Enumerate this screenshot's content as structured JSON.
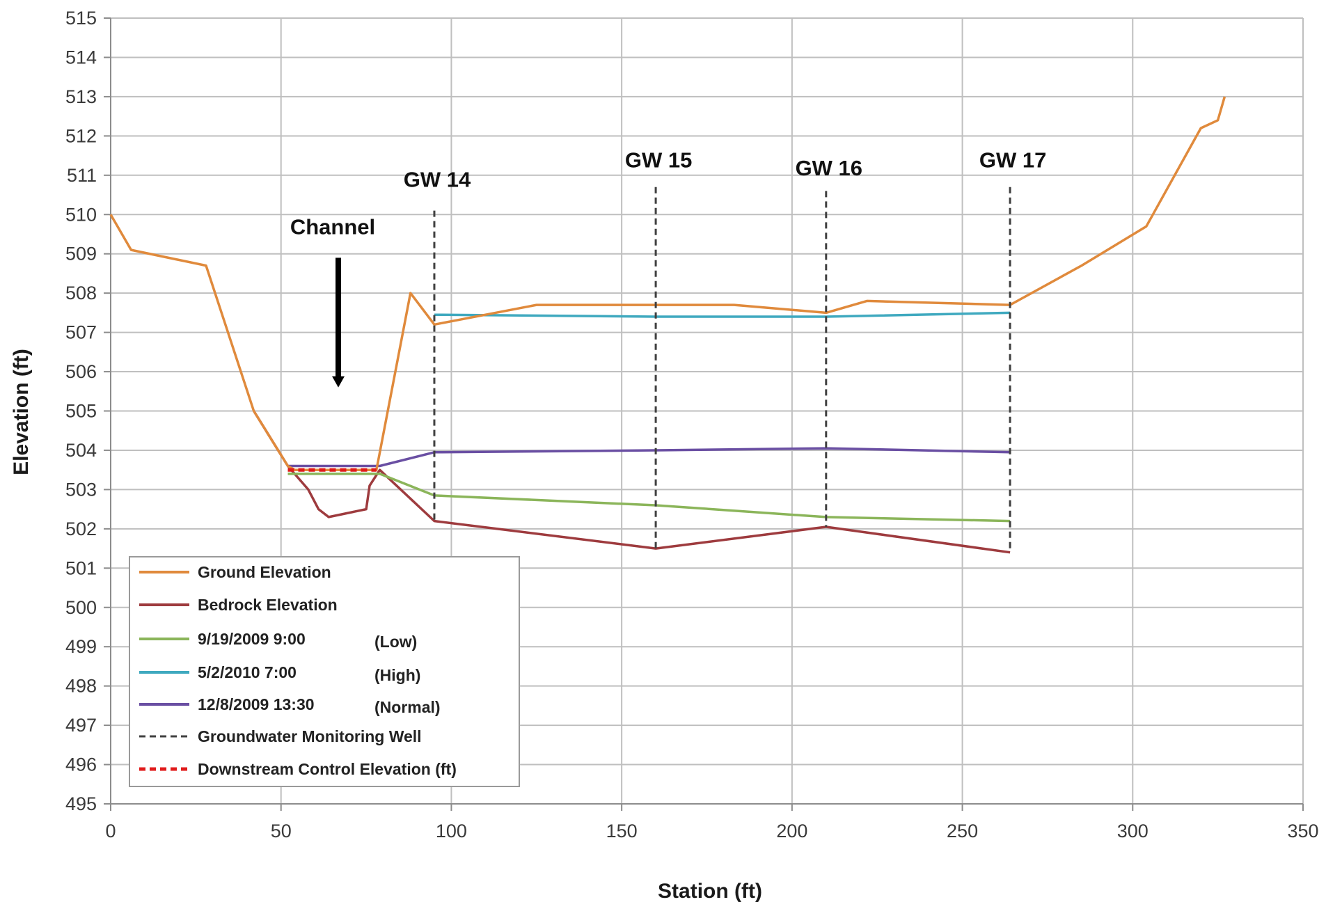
{
  "chart_data": {
    "type": "line",
    "xlabel": "Station (ft)",
    "ylabel": "Elevation (ft)",
    "xlim": [
      0,
      350
    ],
    "ylim": [
      495,
      515
    ],
    "xticks": [
      0,
      50,
      100,
      150,
      200,
      250,
      300,
      350
    ],
    "yticks": [
      495,
      496,
      497,
      498,
      499,
      500,
      501,
      502,
      503,
      504,
      505,
      506,
      507,
      508,
      509,
      510,
      511,
      512,
      513,
      514,
      515
    ],
    "grid": true,
    "legend_position": "bottom-left",
    "series": [
      {
        "name": "Ground Elevation",
        "color": "#E08A3C",
        "style": "solid",
        "points": [
          [
            0,
            510
          ],
          [
            6,
            509.1
          ],
          [
            28,
            508.7
          ],
          [
            42,
            505
          ],
          [
            52,
            503.6
          ],
          [
            54,
            503.5
          ],
          [
            78,
            503.5
          ],
          [
            88,
            508
          ],
          [
            95,
            507.2
          ],
          [
            101,
            507.3
          ],
          [
            125,
            507.7
          ],
          [
            183,
            507.7
          ],
          [
            210,
            507.5
          ],
          [
            222,
            507.8
          ],
          [
            264,
            507.7
          ],
          [
            285,
            508.7
          ],
          [
            304,
            509.7
          ],
          [
            320,
            512.2
          ],
          [
            325,
            512.4
          ],
          [
            327,
            513
          ]
        ]
      },
      {
        "name": "Bedrock Elevation",
        "color": "#9E3B3E",
        "style": "solid",
        "points": [
          [
            42,
            505
          ],
          [
            52,
            503.6
          ],
          [
            58,
            503
          ],
          [
            61,
            502.5
          ],
          [
            64,
            502.3
          ],
          [
            75,
            502.5
          ],
          [
            76,
            503.1
          ],
          [
            79,
            503.5
          ],
          [
            95,
            502.2
          ],
          [
            160,
            501.5
          ],
          [
            210,
            502.05
          ],
          [
            264,
            501.4
          ]
        ]
      },
      {
        "name": "9/19/2009 9:00",
        "qualifier": "(Low)",
        "color": "#8BB55A",
        "style": "solid",
        "points": [
          [
            52,
            503.4
          ],
          [
            79,
            503.4
          ],
          [
            95,
            502.85
          ],
          [
            160,
            502.6
          ],
          [
            210,
            502.3
          ],
          [
            264,
            502.2
          ]
        ]
      },
      {
        "name": "5/2/2010 7:00",
        "qualifier": "(High)",
        "color": "#3FA9BF",
        "style": "solid",
        "points": [
          [
            95,
            507.45
          ],
          [
            160,
            507.4
          ],
          [
            210,
            507.4
          ],
          [
            264,
            507.5
          ]
        ]
      },
      {
        "name": "12/8/2009 13:30",
        "qualifier": "(Normal)",
        "color": "#6A4FA3",
        "style": "solid",
        "points": [
          [
            52,
            503.6
          ],
          [
            79,
            503.6
          ],
          [
            95,
            503.95
          ],
          [
            160,
            504
          ],
          [
            210,
            504.05
          ],
          [
            264,
            503.95
          ]
        ]
      },
      {
        "name": "Groundwater Monitoring Well",
        "color": "#404040",
        "style": "dashed",
        "points": []
      },
      {
        "name": "Downstream Control Elevation (ft)",
        "color": "#E01B1B",
        "style": "dashed",
        "points": [
          [
            52,
            503.5
          ],
          [
            78,
            503.5
          ]
        ]
      }
    ],
    "wells": [
      {
        "label": "GW 14",
        "x": 95,
        "y_top": 510.1,
        "y_bottom": 502.2,
        "label_y": 510.7
      },
      {
        "label": "GW 15",
        "x": 160,
        "y_top": 510.7,
        "y_bottom": 501.5,
        "label_y": 511.2
      },
      {
        "label": "GW 16",
        "x": 210,
        "y_top": 510.6,
        "y_bottom": 502.05,
        "label_y": 511
      },
      {
        "label": "GW 17",
        "x": 264,
        "y_top": 510.7,
        "y_bottom": 501.4,
        "label_y": 511.2
      }
    ],
    "annotations": [
      {
        "text": "Channel",
        "x": 66,
        "y": 509.5,
        "arrow_from": 508.9,
        "arrow_to": 505.6
      }
    ]
  }
}
